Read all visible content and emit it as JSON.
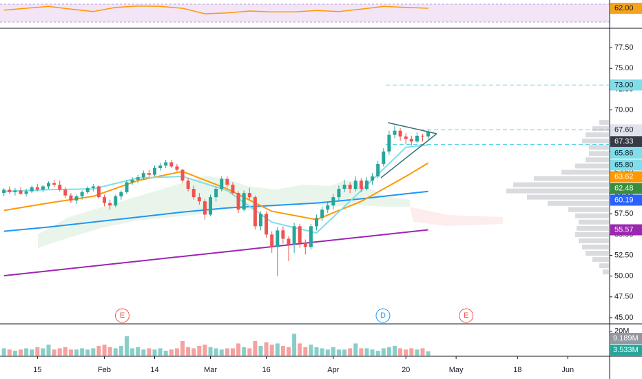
{
  "chart_data": {
    "type": "candlestick",
    "xlim": [
      -0.7,
      108.5
    ],
    "xticks": [
      {
        "value": 6,
        "label": "15"
      },
      {
        "value": 18,
        "label": "Feb"
      },
      {
        "value": 27,
        "label": "14"
      },
      {
        "value": 37,
        "label": "Mar"
      },
      {
        "value": 47,
        "label": "16"
      },
      {
        "value": 59,
        "label": "Apr"
      },
      {
        "value": 72,
        "label": "20"
      },
      {
        "value": 81,
        "label": "May"
      },
      {
        "value": 92,
        "label": "18"
      },
      {
        "value": 101,
        "label": "Jun"
      }
    ],
    "ylim": [
      44.25,
      79.5
    ],
    "yticks": [
      {
        "value": 45,
        "label": "45.00"
      },
      {
        "value": 47.5,
        "label": "47.50"
      },
      {
        "value": 50,
        "label": "50.00"
      },
      {
        "value": 52.5,
        "label": "52.50"
      },
      {
        "value": 55,
        "label": "55.00"
      },
      {
        "value": 57.5,
        "label": "57.50"
      },
      {
        "value": 60,
        "label": "60.00"
      },
      {
        "value": 62.5,
        "label": "62.50"
      },
      {
        "value": 65,
        "label": "65.00"
      },
      {
        "value": 67.5,
        "label": "67.50"
      },
      {
        "value": 70,
        "label": "70.00"
      },
      {
        "value": 72.5,
        "label": "72.50"
      },
      {
        "value": 75,
        "label": "75.00"
      },
      {
        "value": 77.5,
        "label": "77.50"
      }
    ],
    "up_color": "#26a69a",
    "down_color": "#ef5350",
    "candles": [
      [
        60.0,
        60.6,
        59.6,
        60.4
      ],
      [
        60.4,
        60.8,
        59.9,
        60.1
      ],
      [
        60.1,
        60.6,
        59.7,
        60.3
      ],
      [
        60.3,
        60.7,
        59.8,
        59.9
      ],
      [
        59.9,
        60.5,
        59.6,
        60.2
      ],
      [
        60.2,
        60.9,
        60.0,
        60.7
      ],
      [
        60.7,
        61.1,
        60.2,
        60.4
      ],
      [
        60.4,
        61.0,
        60.1,
        60.8
      ],
      [
        60.8,
        61.4,
        60.5,
        61.2
      ],
      [
        61.2,
        61.6,
        60.7,
        61.0
      ],
      [
        61.0,
        61.5,
        60.2,
        60.4
      ],
      [
        60.4,
        60.7,
        59.4,
        59.7
      ],
      [
        59.7,
        60.0,
        58.8,
        59.1
      ],
      [
        59.1,
        59.8,
        58.7,
        59.6
      ],
      [
        59.6,
        60.3,
        59.2,
        60.1
      ],
      [
        60.1,
        60.8,
        59.9,
        60.6
      ],
      [
        60.6,
        61.1,
        60.2,
        60.8
      ],
      [
        60.8,
        60.9,
        59.3,
        59.5
      ],
      [
        59.5,
        59.8,
        58.4,
        58.8
      ],
      [
        58.8,
        59.2,
        58.0,
        58.5
      ],
      [
        58.5,
        59.8,
        58.3,
        59.6
      ],
      [
        59.6,
        60.3,
        59.2,
        60.1
      ],
      [
        60.1,
        61.6,
        59.9,
        61.3
      ],
      [
        61.3,
        61.9,
        61.0,
        61.6
      ],
      [
        61.6,
        62.2,
        61.2,
        61.9
      ],
      [
        61.9,
        62.7,
        61.6,
        62.4
      ],
      [
        62.4,
        62.8,
        61.9,
        62.2
      ],
      [
        62.2,
        63.3,
        62.0,
        63.0
      ],
      [
        63.0,
        63.6,
        62.7,
        63.3
      ],
      [
        63.3,
        64.0,
        63.0,
        63.7
      ],
      [
        63.7,
        64.0,
        63.0,
        63.2
      ],
      [
        63.2,
        63.5,
        62.6,
        62.8
      ],
      [
        62.8,
        62.9,
        61.2,
        61.5
      ],
      [
        61.5,
        61.8,
        60.2,
        60.5
      ],
      [
        60.5,
        60.9,
        59.2,
        59.5
      ],
      [
        59.5,
        60.0,
        58.6,
        59.0
      ],
      [
        59.0,
        59.3,
        56.8,
        57.4
      ],
      [
        57.4,
        59.8,
        57.2,
        59.5
      ],
      [
        59.5,
        60.8,
        59.0,
        60.5
      ],
      [
        60.5,
        62.0,
        60.2,
        61.7
      ],
      [
        61.7,
        62.0,
        60.7,
        61.0
      ],
      [
        61.0,
        61.3,
        59.8,
        60.0
      ],
      [
        60.0,
        60.2,
        57.6,
        58.0
      ],
      [
        58.0,
        60.3,
        57.8,
        60.0
      ],
      [
        60.0,
        60.6,
        59.2,
        59.5
      ],
      [
        59.5,
        59.7,
        55.6,
        56.0
      ],
      [
        56.0,
        57.8,
        55.5,
        57.5
      ],
      [
        57.5,
        57.8,
        54.6,
        55.0
      ],
      [
        55.0,
        55.4,
        52.8,
        53.5
      ],
      [
        53.5,
        55.9,
        50.0,
        55.5
      ],
      [
        55.5,
        56.0,
        53.9,
        54.5
      ],
      [
        54.5,
        54.8,
        51.8,
        53.8
      ],
      [
        53.8,
        56.4,
        52.8,
        56.0
      ],
      [
        56.0,
        56.3,
        53.4,
        54.0
      ],
      [
        54.0,
        54.4,
        52.6,
        53.5
      ],
      [
        53.5,
        56.3,
        53.2,
        56.0
      ],
      [
        56.0,
        57.4,
        55.5,
        57.0
      ],
      [
        57.0,
        58.4,
        56.6,
        58.0
      ],
      [
        58.0,
        58.9,
        57.6,
        58.5
      ],
      [
        58.5,
        59.9,
        58.0,
        59.5
      ],
      [
        59.5,
        60.9,
        59.1,
        60.5
      ],
      [
        60.5,
        61.6,
        60.1,
        61.0
      ],
      [
        61.0,
        61.3,
        60.0,
        60.5
      ],
      [
        60.5,
        62.0,
        60.2,
        61.5
      ],
      [
        61.5,
        61.8,
        60.1,
        60.5
      ],
      [
        60.5,
        61.9,
        60.3,
        61.5
      ],
      [
        61.5,
        62.4,
        61.0,
        62.0
      ],
      [
        62.0,
        63.9,
        61.8,
        63.5
      ],
      [
        63.5,
        65.4,
        63.2,
        65.0
      ],
      [
        65.0,
        67.5,
        64.6,
        67.0
      ],
      [
        67.0,
        68.1,
        66.6,
        67.5
      ],
      [
        67.5,
        67.8,
        66.3,
        66.8
      ],
      [
        66.8,
        67.2,
        65.9,
        66.5
      ],
      [
        66.5,
        66.9,
        65.7,
        66.2
      ],
      [
        66.2,
        67.3,
        66.0,
        66.9
      ],
      [
        66.9,
        67.1,
        66.2,
        66.8
      ],
      [
        66.8,
        67.6,
        66.5,
        67.33
      ]
    ],
    "indicator_x": [
      0,
      8,
      16,
      24,
      32,
      40,
      48,
      56,
      64,
      72,
      76
    ],
    "indicators": [
      {
        "color": "#9c27b0",
        "values": [
          50.05,
          50.63,
          51.21,
          51.79,
          52.37,
          52.95,
          53.54,
          54.12,
          54.7,
          55.28,
          55.57
        ]
      },
      {
        "color": "#2196f3",
        "values": [
          55.4,
          55.9,
          56.5,
          57.1,
          57.7,
          58.2,
          58.5,
          58.8,
          59.3,
          59.9,
          60.19
        ]
      },
      {
        "color": "#ff9800",
        "values": [
          57.9,
          58.8,
          59.6,
          61.5,
          62.6,
          60.5,
          57.8,
          56.8,
          59.0,
          62.0,
          63.62
        ]
      },
      {
        "color": "#80deea",
        "values": [
          60.2,
          60.4,
          60.5,
          61.8,
          62.0,
          60.3,
          56.5,
          55.2,
          60.3,
          65.5,
          65.8
        ]
      }
    ],
    "levels": [
      {
        "value": 73,
        "color": "#4dd0e1"
      },
      {
        "value": 67.6,
        "color": "#4dd0e1"
      },
      {
        "value": 65.86,
        "color": "#4dd0e1"
      }
    ],
    "price_labels": [
      {
        "value": 73,
        "label": "73.00",
        "color": "#80deea",
        "text_color": "#131722"
      },
      {
        "value": 67.6,
        "label": "67.60",
        "color": "#e0e3eb",
        "text_color": "#131722"
      },
      {
        "value": 67.33,
        "label": "67.33",
        "color": "#363a45",
        "text_color": "#ffffff"
      },
      {
        "value": 65.86,
        "label": "65.86",
        "color": "#80deea",
        "text_color": "#131722"
      },
      {
        "value": 65.8,
        "label": "65.80",
        "color": "#80deea",
        "text_color": "#131722"
      },
      {
        "value": 63.62,
        "label": "63.62",
        "color": "#ff9800",
        "text_color": "#ffffff"
      },
      {
        "value": 62.48,
        "label": "62.48",
        "color": "#388e3c",
        "text_color": "#ffffff"
      },
      {
        "value": 60.19,
        "label": "60.19",
        "color": "#2962ff",
        "text_color": "#ffffff"
      },
      {
        "value": 55.57,
        "label": "55.57",
        "color": "#9c27b0",
        "text_color": "#ffffff"
      }
    ],
    "events": [
      {
        "x": 21.2,
        "label": "E",
        "color": "#ef5350"
      },
      {
        "x": 67.9,
        "label": "D",
        "color": "#2196f3"
      },
      {
        "x": 82.8,
        "label": "E",
        "color": "#ef5350"
      }
    ],
    "volume_profile": {
      "xlim": [
        0,
        160
      ],
      "prices": [
        50.5,
        51.25,
        52,
        52.75,
        53.5,
        54.25,
        55,
        55.75,
        56.5,
        57.25,
        58,
        58.75,
        59.5,
        60.25,
        61,
        61.75,
        62.5,
        63.25,
        64,
        64.75,
        65.5,
        66.25,
        67,
        67.75,
        68.5
      ],
      "volumes": [
        10,
        15,
        25,
        35,
        40,
        45,
        50,
        48,
        45,
        50,
        60,
        90,
        120,
        150,
        140,
        110,
        70,
        50,
        35,
        30,
        30,
        40,
        35,
        25,
        15
      ]
    },
    "volume": {
      "ylim": [
        0,
        25
      ],
      "yticks": [
        {
          "value": 20,
          "label": "20M"
        }
      ],
      "values": [
        6,
        5,
        4,
        5,
        6,
        5,
        7,
        6,
        9,
        5,
        6,
        7,
        5,
        5,
        6,
        5,
        6,
        8,
        9,
        7,
        6,
        8,
        16,
        6,
        7,
        5,
        6,
        5,
        6,
        4,
        5,
        6,
        12,
        7,
        6,
        8,
        9,
        7,
        6,
        5,
        6,
        6,
        10,
        7,
        6,
        12,
        8,
        11,
        9,
        10,
        8,
        7,
        18,
        10,
        7,
        9,
        7,
        6,
        5,
        7,
        5,
        5,
        6,
        10,
        6,
        6,
        5,
        4,
        6,
        7,
        8,
        6,
        5,
        6,
        5,
        6,
        3.533
      ],
      "labels": [
        {
          "value": 9.189,
          "label": "9.189M",
          "color": "#9598a1"
        },
        {
          "value": 3.533,
          "label": "3.533M",
          "color": "#26a69a"
        }
      ]
    },
    "rsi": {
      "ylim": [
        20,
        80
      ],
      "x": [
        0,
        4,
        8,
        12,
        16,
        20,
        24,
        28,
        32,
        36,
        40,
        44,
        48,
        52,
        56,
        60,
        64,
        68,
        72,
        76
      ],
      "values": [
        58,
        62,
        66,
        60,
        55,
        64,
        67,
        66,
        62,
        50,
        52,
        56,
        54,
        54,
        57,
        55,
        60,
        66,
        64,
        62
      ],
      "color": "#ff9800",
      "label": {
        "value": 62,
        "label": "62.00",
        "color": "#f7a21b"
      }
    }
  }
}
